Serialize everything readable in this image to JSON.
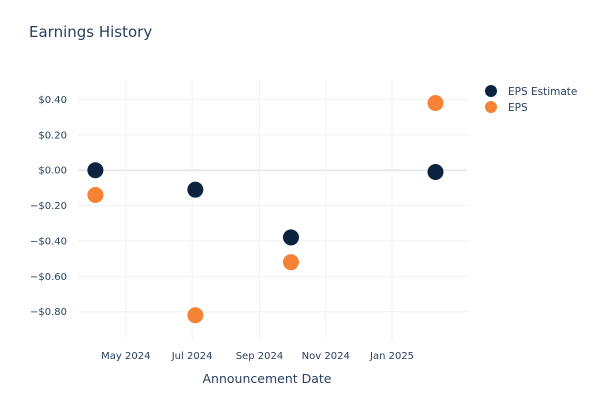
{
  "chart_data": {
    "type": "scatter",
    "title": "Earnings History",
    "xlabel": "Announcement Date",
    "ylabel": "",
    "x_ticks": [
      {
        "date": "2024-05-01",
        "label": "May 2024"
      },
      {
        "date": "2024-07-01",
        "label": "Jul 2024"
      },
      {
        "date": "2024-09-01",
        "label": "Sep 2024"
      },
      {
        "date": "2024-11-01",
        "label": "Nov 2024"
      },
      {
        "date": "2025-01-01",
        "label": "Jan 2025"
      }
    ],
    "y_ticks": [
      {
        "value": 0.4,
        "label": "$0.40"
      },
      {
        "value": 0.2,
        "label": "$0.20"
      },
      {
        "value": 0.0,
        "label": "$0.00"
      },
      {
        "value": -0.2,
        "label": "−$0.20"
      },
      {
        "value": -0.4,
        "label": "−$0.40"
      },
      {
        "value": -0.6,
        "label": "−$0.60"
      },
      {
        "value": -0.8,
        "label": "−$0.80"
      }
    ],
    "xlim": [
      "2024-03-18",
      "2025-03-11"
    ],
    "ylim": [
      -0.96,
      0.51
    ],
    "grid": true,
    "legend_position": "top-right",
    "series": [
      {
        "name": "EPS Estimate",
        "color": "#0c2340",
        "points": [
          {
            "x": "2024-04-03",
            "y": 0.0
          },
          {
            "x": "2024-07-04",
            "y": -0.11
          },
          {
            "x": "2024-09-30",
            "y": -0.38
          },
          {
            "x": "2025-02-10",
            "y": -0.01
          }
        ]
      },
      {
        "name": "EPS",
        "color": "#f68236",
        "points": [
          {
            "x": "2024-04-03",
            "y": -0.14
          },
          {
            "x": "2024-07-04",
            "y": -0.82
          },
          {
            "x": "2024-09-30",
            "y": -0.52
          },
          {
            "x": "2025-02-10",
            "y": 0.38
          }
        ]
      }
    ]
  }
}
